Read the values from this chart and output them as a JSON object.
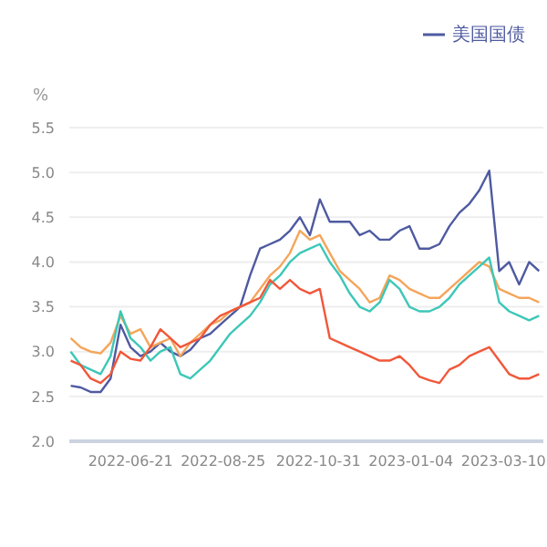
{
  "chart_data": {
    "type": "line",
    "ylabel": "%",
    "legend": "top right",
    "grid": "y",
    "marker": "none",
    "line_style": "solid",
    "x": [
      "2022-05-10",
      "2022-05-17",
      "2022-05-24",
      "2022-05-31",
      "2022-06-07",
      "2022-06-14",
      "2022-06-21",
      "2022-06-28",
      "2022-07-05",
      "2022-07-12",
      "2022-07-19",
      "2022-07-26",
      "2022-08-02",
      "2022-08-09",
      "2022-08-16",
      "2022-08-23",
      "2022-08-30",
      "2022-09-06",
      "2022-09-13",
      "2022-09-20",
      "2022-09-27",
      "2022-10-04",
      "2022-10-11",
      "2022-10-18",
      "2022-10-25",
      "2022-11-01",
      "2022-11-08",
      "2022-11-15",
      "2022-11-22",
      "2022-11-29",
      "2022-12-06",
      "2022-12-13",
      "2022-12-20",
      "2022-12-27",
      "2023-01-03",
      "2023-01-10",
      "2023-01-17",
      "2023-01-24",
      "2023-01-31",
      "2023-02-07",
      "2023-02-14",
      "2023-02-21",
      "2023-02-28",
      "2023-03-07",
      "2023-03-14",
      "2023-03-21",
      "2023-03-28",
      "2023-04-04"
    ],
    "xlim": [
      "2022-05-09",
      "2023-04-07"
    ],
    "xticks": [
      "2022-06-21",
      "2022-08-25",
      "2022-10-31",
      "2023-01-04",
      "2023-03-10"
    ],
    "ylim": [
      2,
      5.5
    ],
    "yticks": [
      {
        "value": 2,
        "label": "2.0"
      },
      {
        "value": 2.5,
        "label": "2.5"
      },
      {
        "value": 3,
        "label": "3.0"
      },
      {
        "value": 3.5,
        "label": "3.5"
      },
      {
        "value": 4,
        "label": "4.0"
      },
      {
        "value": 4.5,
        "label": "4.5"
      },
      {
        "value": 5,
        "label": "5.0"
      },
      {
        "value": 5.5,
        "label": "5.5"
      }
    ],
    "series": [
      {
        "name": "美国国债",
        "color": "#4e5aa0",
        "values": [
          2.62,
          2.6,
          2.55,
          2.55,
          2.7,
          3.3,
          3.05,
          2.95,
          3.0,
          3.1,
          3.0,
          2.95,
          3.02,
          3.15,
          3.2,
          3.3,
          3.4,
          3.5,
          3.85,
          4.15,
          4.2,
          4.25,
          4.35,
          4.5,
          4.3,
          4.7,
          4.45,
          4.45,
          4.45,
          4.3,
          4.35,
          4.25,
          4.25,
          4.35,
          4.4,
          4.15,
          4.15,
          4.2,
          4.4,
          4.55,
          4.65,
          4.8,
          5.02,
          3.9,
          4.0,
          3.75,
          4.0,
          3.9
        ]
      },
      {
        "color": "#f5a55a",
        "values": [
          3.15,
          3.05,
          3.0,
          2.98,
          3.1,
          3.4,
          3.2,
          3.25,
          3.05,
          3.1,
          3.15,
          2.95,
          3.1,
          3.2,
          3.3,
          3.35,
          3.45,
          3.5,
          3.55,
          3.7,
          3.85,
          3.95,
          4.1,
          4.35,
          4.25,
          4.3,
          4.1,
          3.9,
          3.8,
          3.7,
          3.55,
          3.6,
          3.85,
          3.8,
          3.7,
          3.65,
          3.6,
          3.6,
          3.7,
          3.8,
          3.9,
          4.0,
          3.95,
          3.7,
          3.65,
          3.6,
          3.6,
          3.55
        ]
      },
      {
        "color": "#3dc7b8",
        "values": [
          3.0,
          2.85,
          2.8,
          2.75,
          2.95,
          3.45,
          3.15,
          3.05,
          2.9,
          3.0,
          3.05,
          2.75,
          2.7,
          2.8,
          2.9,
          3.05,
          3.2,
          3.3,
          3.4,
          3.55,
          3.75,
          3.85,
          4.0,
          4.1,
          4.15,
          4.2,
          4.0,
          3.85,
          3.65,
          3.5,
          3.45,
          3.55,
          3.8,
          3.7,
          3.5,
          3.45,
          3.45,
          3.5,
          3.6,
          3.75,
          3.85,
          3.95,
          4.05,
          3.55,
          3.45,
          3.4,
          3.35,
          3.4
        ]
      },
      {
        "color": "#f0583a",
        "values": [
          2.9,
          2.85,
          2.7,
          2.65,
          2.75,
          3.0,
          2.92,
          2.9,
          3.05,
          3.25,
          3.15,
          3.05,
          3.1,
          3.15,
          3.3,
          3.4,
          3.45,
          3.5,
          3.55,
          3.6,
          3.8,
          3.7,
          3.8,
          3.7,
          3.65,
          3.7,
          3.15,
          3.1,
          3.05,
          3.0,
          2.95,
          2.9,
          2.9,
          2.95,
          2.85,
          2.72,
          2.68,
          2.65,
          2.8,
          2.85,
          2.95,
          3.0,
          3.05,
          2.9,
          2.75,
          2.7,
          2.7,
          2.75
        ]
      }
    ]
  }
}
